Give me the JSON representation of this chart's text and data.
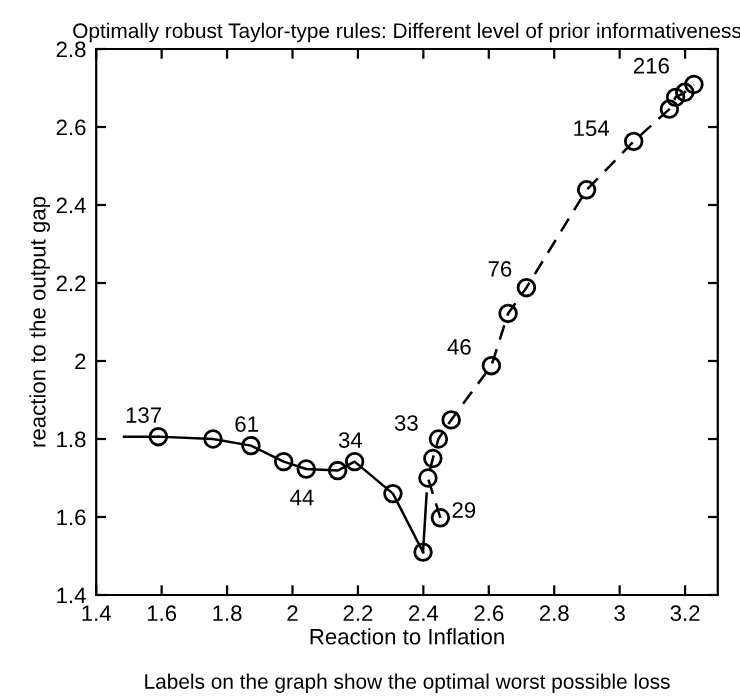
{
  "chart_data": {
    "type": "line",
    "title": "Optimally robust Taylor-type rules: Different level of prior informativeness",
    "xlabel": "Reaction to Inflation",
    "ylabel": "reaction to the output gap",
    "series": [
      {
        "color": "#000000",
        "marker": "circle",
        "line_style": "solid",
        "x": [
          1.59,
          1.757,
          1.873,
          1.973,
          2.042,
          2.138,
          2.19,
          2.307,
          2.399
        ],
        "values": [
          1.806,
          1.8,
          1.783,
          1.742,
          1.723,
          1.719,
          1.742,
          1.66,
          1.51
        ]
      },
      {
        "color": "#000000",
        "marker": "none",
        "line_style": "solid",
        "x": [
          1.485,
          1.59
        ],
        "values": [
          1.806,
          1.806
        ]
      },
      {
        "color": "#000000",
        "marker": "none",
        "line_style": "solid",
        "x": [
          2.41,
          2.399
        ],
        "values": [
          1.66,
          1.51
        ]
      },
      {
        "color": "#000000",
        "marker": "circle",
        "line_style": "dashed",
        "x": [
          2.452,
          2.414,
          2.429,
          2.446,
          2.485,
          2.608,
          2.659,
          2.715,
          2.899,
          3.043,
          3.152,
          3.171,
          3.199,
          3.227
        ],
        "values": [
          1.598,
          1.7,
          1.75,
          1.8,
          1.849,
          1.988,
          2.122,
          2.188,
          2.439,
          2.563,
          2.646,
          2.676,
          2.689,
          2.709
        ]
      }
    ],
    "annotations": [
      {
        "text": "137",
        "x": 1.59,
        "y": 1.806
      },
      {
        "text": "61",
        "x": 1.873,
        "y": 1.783
      },
      {
        "text": "44",
        "x": 2.042,
        "y": 1.723
      },
      {
        "text": "34",
        "x": 2.19,
        "y": 1.742
      },
      {
        "text": "33",
        "x": 2.446,
        "y": 1.8
      },
      {
        "text": "29",
        "x": 2.452,
        "y": 1.598
      },
      {
        "text": "46",
        "x": 2.608,
        "y": 1.988
      },
      {
        "text": "76",
        "x": 2.715,
        "y": 2.188
      },
      {
        "text": "154",
        "x": 3.043,
        "y": 2.563
      },
      {
        "text": "216",
        "x": 3.227,
        "y": 2.709
      },
      "Labels on the graph show the optimal worst possible loss"
    ],
    "xlim": [
      1.4,
      3.3
    ],
    "xticks": [
      1.4,
      1.6,
      1.8,
      2,
      2.2,
      2.4,
      2.6,
      2.8,
      3,
      3.2
    ],
    "ylim": [
      1.4,
      2.8
    ],
    "yticks": [
      1.4,
      1.6,
      1.8,
      2,
      2.2,
      2.4,
      2.6,
      2.8
    ],
    "grid": false,
    "legend": false
  }
}
